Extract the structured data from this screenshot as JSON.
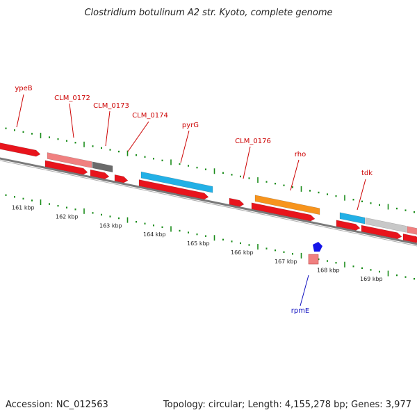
{
  "title": "Clostridium botulinum A2 str. Kyoto, complete genome",
  "accession": "Accession: NC_012563",
  "summary": "Topology: circular; Length: 4,155,278 bp; Genes: 3,977",
  "colors": {
    "forward_cds": "#e8141c",
    "rrna_like": "#f08080",
    "hypothetical": "#6a6a6a",
    "cyan_gene": "#22b0e6",
    "orange_gene": "#f7941d",
    "grey_gene": "#c8c8c8",
    "reverse_cds": "#1414e8",
    "label_red": "#cc0000",
    "label_blue": "#1010c0",
    "tick_green": "#1a8c1a",
    "backbone": "#7a7a7a"
  },
  "gene_labels": [
    {
      "id": "ypeB",
      "text": "ypeB",
      "color": "label_red"
    },
    {
      "id": "clm0172",
      "text": "CLM_0172",
      "color": "label_red"
    },
    {
      "id": "clm0173",
      "text": "CLM_0173",
      "color": "label_red"
    },
    {
      "id": "clm0174",
      "text": "CLM_0174",
      "color": "label_red"
    },
    {
      "id": "pyrG",
      "text": "pyrG",
      "color": "label_red"
    },
    {
      "id": "clm0176",
      "text": "CLM_0176",
      "color": "label_red"
    },
    {
      "id": "rho",
      "text": "rho",
      "color": "label_red"
    },
    {
      "id": "tdk",
      "text": "tdk",
      "color": "label_red"
    },
    {
      "id": "rpmE",
      "text": "rpmE",
      "color": "label_blue"
    }
  ],
  "scale_labels": [
    "161 kbp",
    "162 kbp",
    "163 kbp",
    "164 kbp",
    "165 kbp",
    "166 kbp",
    "167 kbp",
    "168 kbp",
    "169 kbp"
  ]
}
